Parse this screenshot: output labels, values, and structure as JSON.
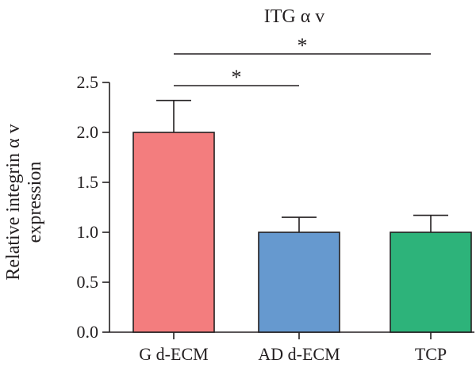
{
  "chart_data": {
    "type": "bar",
    "title": "ITG α v",
    "ylabel_line1": "Relative integrin α v",
    "ylabel_line2": "expression",
    "xlabel": "",
    "ylim": [
      0,
      2.5
    ],
    "yticks": [
      0.0,
      0.5,
      1.0,
      1.5,
      2.0,
      2.5
    ],
    "ytick_labels": [
      "0.0",
      "0.5",
      "1.0",
      "1.5",
      "2.0",
      "2.5"
    ],
    "categories": [
      "G d-ECM",
      "AD d-ECM",
      "TCP"
    ],
    "values": [
      2.0,
      1.0,
      1.0
    ],
    "errors": [
      0.32,
      0.15,
      0.17
    ],
    "colors": [
      "#f37d7e",
      "#6699cf",
      "#2db37a"
    ],
    "significance": [
      {
        "from": "G d-ECM",
        "to": "AD d-ECM",
        "label": "*"
      },
      {
        "from": "G d-ECM",
        "to": "TCP",
        "label": "*"
      }
    ]
  }
}
